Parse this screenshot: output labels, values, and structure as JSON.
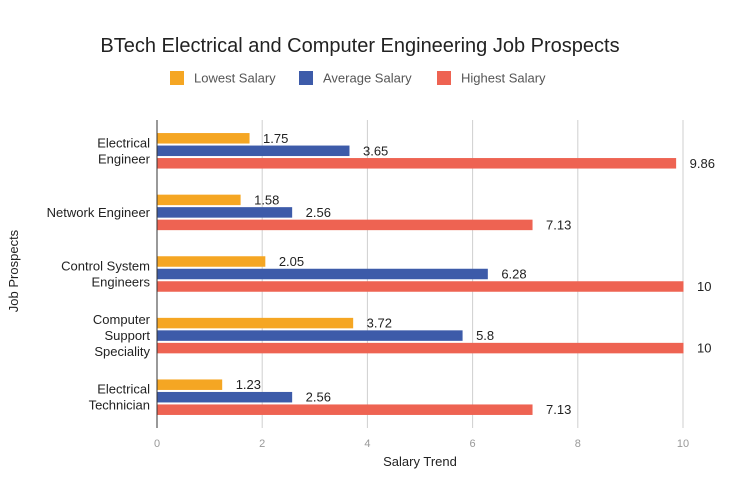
{
  "chart_data": {
    "type": "bar",
    "orientation": "horizontal",
    "title": "BTech Electrical and Computer Engineering Job Prospects",
    "xlabel": "Salary Trend",
    "ylabel": "Job Prospects",
    "xlim": [
      0,
      10
    ],
    "xticks": [
      "0",
      "2",
      "4",
      "6",
      "8",
      "10"
    ],
    "grid": true,
    "legend_position": "top",
    "categories": [
      [
        "Electrical",
        "Engineer"
      ],
      [
        "Network Engineer"
      ],
      [
        "Control System",
        "Engineers"
      ],
      [
        "Computer",
        "Support",
        "Speciality"
      ],
      [
        "Electrical",
        "Technician"
      ]
    ],
    "series": [
      {
        "name": "Lowest Salary",
        "color": "#f5a623",
        "values": [
          1.75,
          1.58,
          2.05,
          3.72,
          1.23
        ]
      },
      {
        "name": "Average Salary",
        "color": "#3d5ba9",
        "values": [
          3.65,
          2.56,
          6.28,
          5.8,
          2.56
        ]
      },
      {
        "name": "Highest Salary",
        "color": "#ee6352",
        "values": [
          9.86,
          7.13,
          10,
          10,
          7.13
        ]
      }
    ]
  }
}
